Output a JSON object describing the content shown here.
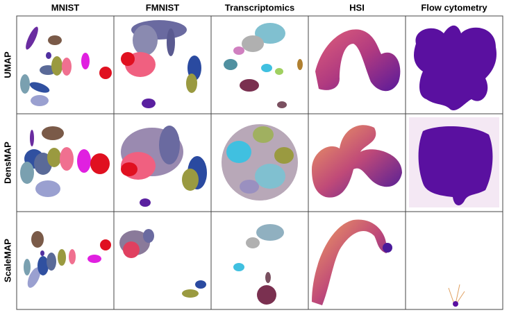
{
  "columns": [
    "MNIST",
    "FMNIST",
    "Transcriptomics",
    "HSI",
    "Flow cytometry"
  ],
  "rows": [
    "UMAP",
    "DensMAP",
    "ScaleMAP"
  ]
}
